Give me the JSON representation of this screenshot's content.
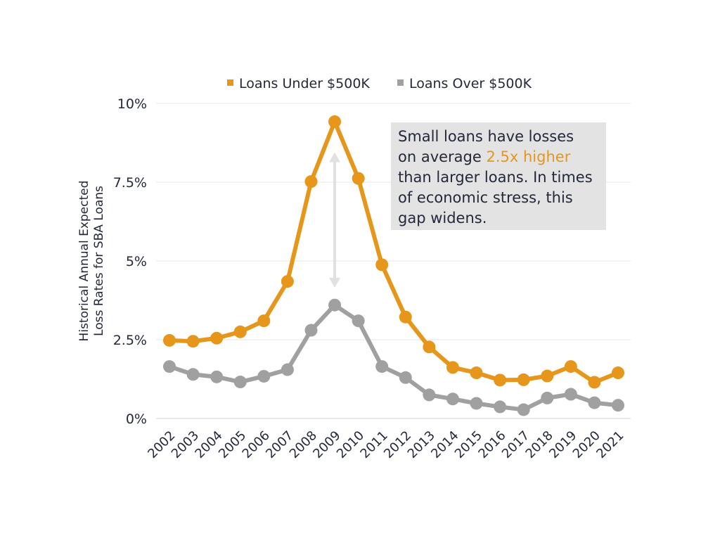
{
  "chart_data": {
    "type": "line",
    "ylabel": "Historical Annual Expected Loss Rates for SBA Loans",
    "ylabel_lines": [
      "Historical Annual Expected",
      "Loss Rates for SBA Loans"
    ],
    "ylim": [
      0,
      10
    ],
    "yticks": [
      {
        "value": 0,
        "label": "0%"
      },
      {
        "value": 2.5,
        "label": "2.5%"
      },
      {
        "value": 5,
        "label": "5%"
      },
      {
        "value": 7.5,
        "label": "7.5%"
      },
      {
        "value": 10,
        "label": "10%"
      }
    ],
    "grid": true,
    "legend_position": "top-center",
    "categories": [
      "2002",
      "2003",
      "2004",
      "2005",
      "2006",
      "2007",
      "2008",
      "2009",
      "2010",
      "2011",
      "2012",
      "2013",
      "2014",
      "2015",
      "2016",
      "2017",
      "2018",
      "2019",
      "2020",
      "2021"
    ],
    "series": [
      {
        "name": "Loans Under $500K",
        "color": "#E5961B",
        "values": [
          2.48,
          2.45,
          2.55,
          2.75,
          3.1,
          4.35,
          7.52,
          9.42,
          7.62,
          4.88,
          3.22,
          2.27,
          1.62,
          1.45,
          1.22,
          1.23,
          1.35,
          1.65,
          1.15,
          1.45
        ]
      },
      {
        "name": "Loans Over $500K",
        "color": "#A0A0A0",
        "values": [
          1.65,
          1.4,
          1.32,
          1.16,
          1.34,
          1.55,
          2.8,
          3.6,
          3.1,
          1.65,
          1.3,
          0.75,
          0.62,
          0.48,
          0.37,
          0.28,
          0.65,
          0.77,
          0.5,
          0.42
        ]
      }
    ],
    "annotation": {
      "arrow": {
        "year": "2009",
        "from_value": 8.4,
        "to_value": 4.2,
        "color": "#E1E1E1"
      },
      "callout": {
        "background": "#E3E3E3",
        "highlight_color": "#E5961B",
        "lines": [
          [
            {
              "text": "Small loans have losses",
              "highlight": false
            }
          ],
          [
            {
              "text": "on average ",
              "highlight": false
            },
            {
              "text": "2.5x higher",
              "highlight": true
            }
          ],
          [
            {
              "text": "than larger loans. In times",
              "highlight": false
            }
          ],
          [
            {
              "text": "of economic stress, this",
              "highlight": false
            }
          ],
          [
            {
              "text": "gap widens.",
              "highlight": false
            }
          ]
        ]
      }
    }
  }
}
